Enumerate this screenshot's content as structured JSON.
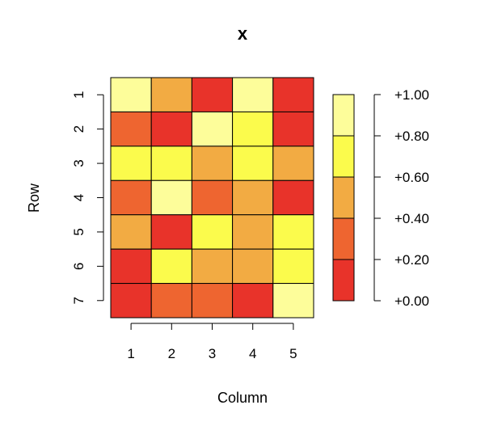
{
  "chart_data": {
    "type": "heatmap",
    "title": "x",
    "xlabel": "Column",
    "ylabel": "Row",
    "columns": [
      "1",
      "2",
      "3",
      "4",
      "5"
    ],
    "rows": [
      "1",
      "2",
      "3",
      "4",
      "5",
      "6",
      "7"
    ],
    "values": [
      [
        0.9,
        0.5,
        0.1,
        0.9,
        0.1
      ],
      [
        0.3,
        0.1,
        0.9,
        0.7,
        0.1
      ],
      [
        0.7,
        0.7,
        0.5,
        0.7,
        0.5
      ],
      [
        0.3,
        0.9,
        0.3,
        0.5,
        0.1
      ],
      [
        0.5,
        0.1,
        0.7,
        0.5,
        0.7
      ],
      [
        0.1,
        0.7,
        0.5,
        0.5,
        0.7
      ],
      [
        0.1,
        0.3,
        0.3,
        0.1,
        0.9
      ]
    ],
    "legend": {
      "ticks": [
        "+0.00",
        "+0.20",
        "+0.40",
        "+0.60",
        "+0.80",
        "+1.00"
      ],
      "range": [
        0,
        1
      ],
      "colors": [
        "#E8332A",
        "#EE6530",
        "#F2AB43",
        "#FBFB4C",
        "#FDFD9A"
      ]
    }
  }
}
